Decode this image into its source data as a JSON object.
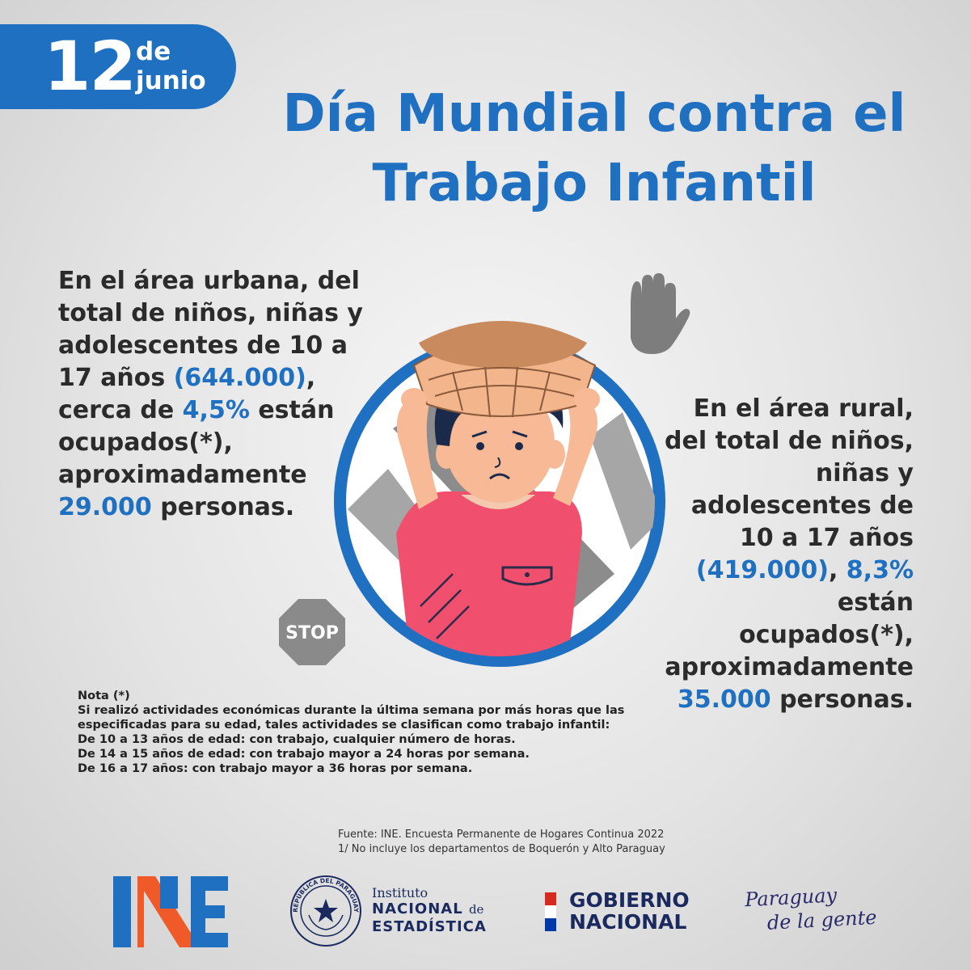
{
  "badge": {
    "day": "12",
    "month_prefix": "de",
    "month": "junio"
  },
  "title": {
    "line1": "Día Mundial contra el",
    "line2": "Trabajo Infantil"
  },
  "urban": {
    "t1": "En el área urbana, del total de niños, niñas y adolescentes de 10 a 17 años",
    "v1": "(644.000)",
    "t2": ", cerca de",
    "v2": "4,5%",
    "t3": "están ocupados(*), aproximadamente",
    "v3": "29.000",
    "t4": "personas."
  },
  "rural": {
    "t1": "En el área rural, del total de niños, niñas y adolescentes de 10 a 17 años",
    "v1": "(419.000)",
    "t2": ",",
    "v2": "8,3%",
    "t3": "están ocupados(*), aproximadamente",
    "v3": "35.000",
    "t4": "personas."
  },
  "stop_label": "STOP",
  "note": {
    "heading": "Nota (*)",
    "lines": [
      "Si realizó actividades económicas durante la última semana por más horas que las especificadas para su edad, tales actividades se clasifican como trabajo infantil:",
      "De 10 a 13 años de edad: con trabajo, cualquier número de horas.",
      "De 14 a 15 años de edad: con trabajo mayor a 24 horas por semana.",
      "De 16 a 17 años: con trabajo mayor a 36 horas por semana."
    ]
  },
  "source": {
    "line1": "Fuente: INE. Encuesta Permanente de Hogares Continua 2022",
    "line2": "1/ No incluye los departamentos de Boquerón y Alto Paraguay"
  },
  "footer": {
    "ine_institute_l1": "Instituto",
    "ine_institute_l2": "NACIONAL",
    "ine_institute_de": "de",
    "ine_institute_l3": "ESTADÍSTICA",
    "seal_text": "REPÚBLICA DEL PARAGUAY",
    "gob_l1": "GOBIERNO",
    "gob_l2": "NACIONAL",
    "pdlg_l1": "Paraguay",
    "pdlg_l2": "de la gente"
  },
  "colors": {
    "accent": "#1f70c1",
    "text": "#2b2b2b",
    "shirt": "#f0506e",
    "skin": "#f7b996",
    "hair": "#1b2a4a",
    "gray": "#8a8a8a",
    "basket": "#f2b58c"
  }
}
